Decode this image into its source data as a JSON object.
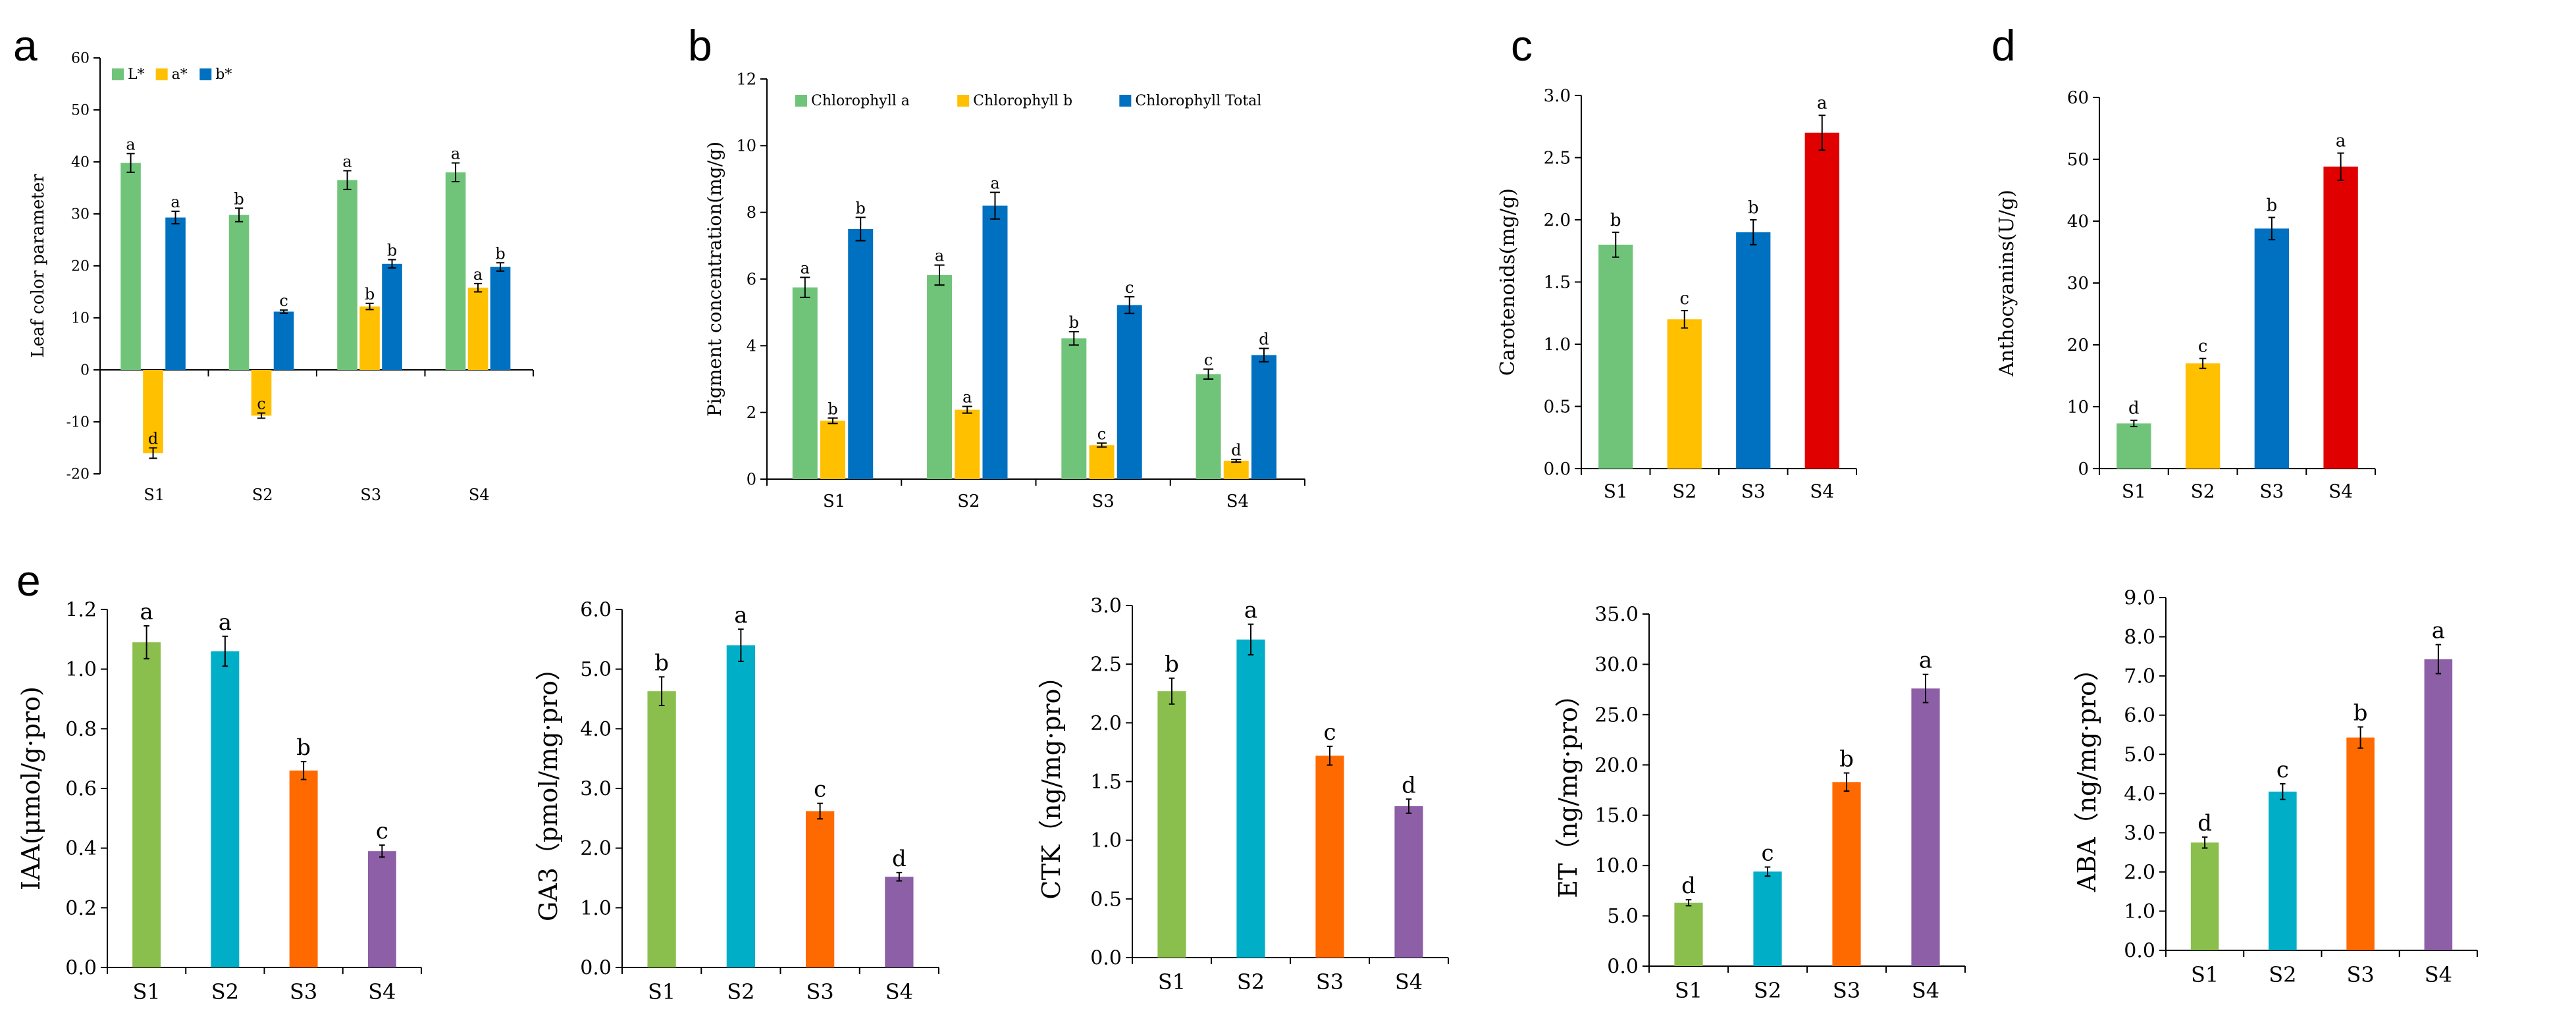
{
  "chart_data": [
    {
      "id": "a",
      "panel_letter": "a",
      "type": "bar",
      "ylabel": "Leaf color parameter",
      "ylim": [
        -20,
        60
      ],
      "yticks": [
        -20,
        -10,
        0,
        10,
        20,
        30,
        40,
        50,
        60
      ],
      "tick_decimals": 0,
      "categories": [
        "S1",
        "S2",
        "S3",
        "S4"
      ],
      "legend_position": "top-left",
      "series": [
        {
          "name": "L*",
          "color": "#70c47a",
          "values": [
            39.8,
            29.8,
            36.5,
            38.0
          ],
          "errors": [
            1.8,
            1.3,
            1.8,
            1.8
          ],
          "letters": [
            "a",
            "b",
            "a",
            "a"
          ]
        },
        {
          "name": "a*",
          "color": "#ffc000",
          "values": [
            -16.0,
            -8.8,
            12.2,
            15.8
          ],
          "errors": [
            1.0,
            0.5,
            0.6,
            0.8
          ],
          "letters": [
            "d",
            "c",
            "b",
            "a"
          ]
        },
        {
          "name": "b*",
          "color": "#0070c0",
          "values": [
            29.3,
            11.2,
            20.4,
            19.8
          ],
          "errors": [
            1.2,
            0.3,
            0.8,
            0.8
          ],
          "letters": [
            "a",
            "c",
            "b",
            "b"
          ]
        }
      ]
    },
    {
      "id": "b",
      "panel_letter": "b",
      "type": "bar",
      "ylabel": "Pigment concentration(mg/g)",
      "ylim": [
        0,
        12
      ],
      "yticks": [
        0,
        2,
        4,
        6,
        8,
        10,
        12
      ],
      "tick_decimals": 0,
      "categories": [
        "S1",
        "S2",
        "S3",
        "S4"
      ],
      "legend_position": "top",
      "series": [
        {
          "name": "Chlorophyll a",
          "color": "#70c47a",
          "values": [
            5.75,
            6.12,
            4.22,
            3.15
          ],
          "errors": [
            0.3,
            0.3,
            0.2,
            0.15
          ],
          "letters": [
            "a",
            "a",
            "b",
            "c"
          ]
        },
        {
          "name": "Chlorophyll b",
          "color": "#ffc000",
          "values": [
            1.75,
            2.08,
            1.02,
            0.55
          ],
          "errors": [
            0.08,
            0.1,
            0.06,
            0.04
          ],
          "letters": [
            "b",
            "a",
            "c",
            "d"
          ]
        },
        {
          "name": "Chlorophyll Total",
          "color": "#0070c0",
          "values": [
            7.5,
            8.2,
            5.22,
            3.72
          ],
          "errors": [
            0.35,
            0.4,
            0.25,
            0.2
          ],
          "letters": [
            "b",
            "a",
            "c",
            "d"
          ]
        }
      ]
    },
    {
      "id": "c",
      "panel_letter": "c",
      "type": "bar",
      "ylabel": "Carotenoids(mg/g)",
      "ylim": [
        0,
        3.0
      ],
      "yticks": [
        0,
        0.5,
        1.0,
        1.5,
        2.0,
        2.5,
        3.0
      ],
      "tick_decimals": 1,
      "categories": [
        "S1",
        "S2",
        "S3",
        "S4"
      ],
      "colors": [
        "#70c47a",
        "#ffc000",
        "#0070c0",
        "#e00000"
      ],
      "values": [
        1.8,
        1.2,
        1.9,
        2.7
      ],
      "errors": [
        0.1,
        0.07,
        0.1,
        0.14
      ],
      "letters": [
        "b",
        "c",
        "b",
        "a"
      ]
    },
    {
      "id": "d",
      "panel_letter": "d",
      "type": "bar",
      "ylabel": "Anthocyanins(U/g)",
      "ylim": [
        0,
        60
      ],
      "yticks": [
        0,
        10,
        20,
        30,
        40,
        50,
        60
      ],
      "tick_decimals": 0,
      "categories": [
        "S1",
        "S2",
        "S3",
        "S4"
      ],
      "colors": [
        "#70c47a",
        "#ffc000",
        "#0070c0",
        "#e00000"
      ],
      "values": [
        7.3,
        17.0,
        38.8,
        48.8
      ],
      "errors": [
        0.5,
        0.8,
        1.8,
        2.2
      ],
      "letters": [
        "d",
        "c",
        "b",
        "a"
      ]
    },
    {
      "id": "e1",
      "panel_letter": "e",
      "type": "bar",
      "ylabel": "IAA(μmol/g·pro)",
      "ylim": [
        0,
        1.2
      ],
      "yticks": [
        0,
        0.2,
        0.4,
        0.6,
        0.8,
        1.0,
        1.2
      ],
      "tick_decimals": 1,
      "categories": [
        "S1",
        "S2",
        "S3",
        "S4"
      ],
      "colors": [
        "#8bbf4d",
        "#00aec8",
        "#ff6a00",
        "#8d5fa6"
      ],
      "values": [
        1.09,
        1.06,
        0.66,
        0.39
      ],
      "errors": [
        0.055,
        0.05,
        0.03,
        0.02
      ],
      "letters": [
        "a",
        "a",
        "b",
        "c"
      ]
    },
    {
      "id": "e2",
      "type": "bar",
      "ylabel": "GA3（pmol/mg·pro）",
      "ylim": [
        0,
        6.0
      ],
      "yticks": [
        0,
        1.0,
        2.0,
        3.0,
        4.0,
        5.0,
        6.0
      ],
      "tick_decimals": 1,
      "categories": [
        "S1",
        "S2",
        "S3",
        "S4"
      ],
      "colors": [
        "#8bbf4d",
        "#00aec8",
        "#ff6a00",
        "#8d5fa6"
      ],
      "values": [
        4.63,
        5.4,
        2.62,
        1.52
      ],
      "errors": [
        0.24,
        0.27,
        0.13,
        0.07
      ],
      "letters": [
        "b",
        "a",
        "c",
        "d"
      ]
    },
    {
      "id": "e3",
      "type": "bar",
      "ylabel": "CTK（ng/mg·pro）",
      "ylim": [
        0,
        3.0
      ],
      "yticks": [
        0,
        0.5,
        1.0,
        1.5,
        2.0,
        2.5,
        3.0
      ],
      "tick_decimals": 1,
      "categories": [
        "S1",
        "S2",
        "S3",
        "S4"
      ],
      "colors": [
        "#8bbf4d",
        "#00aec8",
        "#ff6a00",
        "#8d5fa6"
      ],
      "values": [
        2.27,
        2.71,
        1.72,
        1.29
      ],
      "errors": [
        0.11,
        0.13,
        0.08,
        0.06
      ],
      "letters": [
        "b",
        "a",
        "c",
        "d"
      ]
    },
    {
      "id": "e4",
      "type": "bar",
      "ylabel": "ET（ng/mg·pro）",
      "ylim": [
        0,
        35.0
      ],
      "yticks": [
        0,
        5.0,
        10.0,
        15.0,
        20.0,
        25.0,
        30.0,
        35.0
      ],
      "tick_decimals": 1,
      "categories": [
        "S1",
        "S2",
        "S3",
        "S4"
      ],
      "colors": [
        "#8bbf4d",
        "#00aec8",
        "#ff6a00",
        "#8d5fa6"
      ],
      "values": [
        6.3,
        9.4,
        18.3,
        27.6
      ],
      "errors": [
        0.3,
        0.45,
        0.9,
        1.4
      ],
      "letters": [
        "d",
        "c",
        "b",
        "a"
      ]
    },
    {
      "id": "e5",
      "type": "bar",
      "ylabel": "ABA（ng/mg·pro）",
      "ylim": [
        0,
        9.0
      ],
      "yticks": [
        0,
        1.0,
        2.0,
        3.0,
        4.0,
        5.0,
        6.0,
        7.0,
        8.0,
        9.0
      ],
      "tick_decimals": 1,
      "categories": [
        "S1",
        "S2",
        "S3",
        "S4"
      ],
      "colors": [
        "#8bbf4d",
        "#00aec8",
        "#ff6a00",
        "#8d5fa6"
      ],
      "values": [
        2.75,
        4.05,
        5.43,
        7.43
      ],
      "errors": [
        0.14,
        0.2,
        0.27,
        0.37
      ],
      "letters": [
        "d",
        "c",
        "b",
        "a"
      ]
    }
  ]
}
